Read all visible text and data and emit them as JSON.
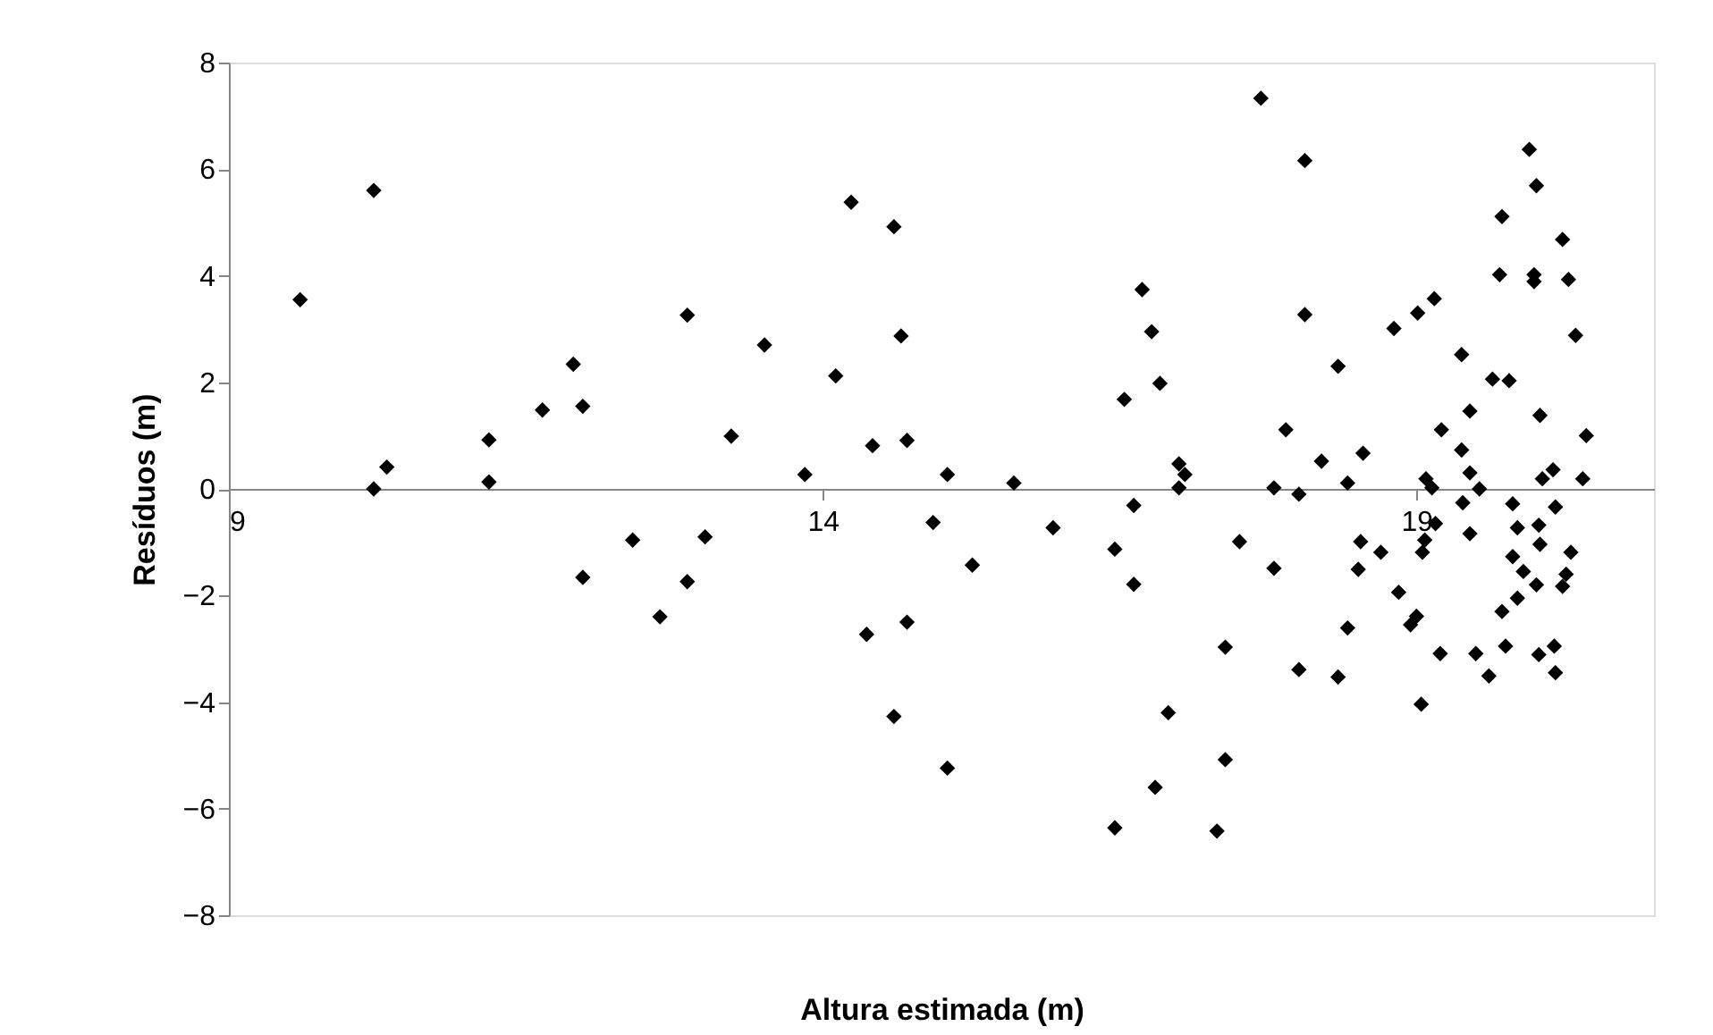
{
  "chart_data": {
    "type": "scatter",
    "xlabel": "Altura estimada (m)",
    "ylabel": "Resíduos (m)",
    "xlim": [
      9,
      21
    ],
    "xticks": [
      9,
      14,
      19
    ],
    "ylim": [
      -8,
      8
    ],
    "yticks": [
      -8,
      -6,
      -4,
      -2,
      0,
      2,
      4,
      6,
      8
    ],
    "marker": "diamond",
    "series": [
      {
        "color": "#000000",
        "x": [
          9.6,
          10.22,
          10.22,
          10.33,
          11.19,
          11.19,
          11.64,
          11.9,
          11.98,
          11.98,
          12.4,
          12.63,
          12.86,
          12.86,
          13.01,
          13.23,
          13.51,
          13.85,
          14.11,
          14.24,
          14.37,
          14.42,
          14.6,
          14.6,
          14.66,
          14.71,
          14.71,
          15.05,
          14.93,
          15.26,
          15.05,
          15.61,
          15.94,
          16.54,
          16.46,
          16.62,
          16.62,
          16.46,
          16.69,
          16.77,
          16.84,
          16.91,
          16.8,
          17.0,
          17.05,
          17.0,
          17.39,
          17.39,
          17.32,
          17.51,
          17.69,
          17.8,
          17.8,
          17.9,
          18.01,
          18.01,
          18.06,
          18.06,
          18.2,
          18.34,
          18.34,
          18.42,
          18.42,
          18.55,
          18.53,
          19.95,
          20.01,
          19.72,
          20.23,
          19.7,
          19.99,
          19.99,
          20.28,
          19.15,
          19.01,
          18.81,
          20.34,
          19.38,
          19.64,
          19.78,
          19.45,
          19.21,
          20.04,
          20.43,
          19.38,
          19.08,
          19.45,
          20.06,
          20.15,
          20.4,
          19.13,
          19.53,
          19.39,
          19.81,
          20.17,
          19.16,
          19.85,
          20.03,
          18.7,
          19.07,
          19.05,
          19.45,
          20.04,
          20.3,
          18.51,
          19.81,
          19.9,
          20.26,
          20.23,
          20.01,
          18.85,
          19.85,
          19.72,
          19.0,
          18.95,
          19.75,
          20.16,
          19.2,
          19.5,
          20.03,
          19.61,
          20.17,
          19.04
        ],
        "values": [
          3.55,
          5.6,
          0.0,
          0.41,
          0.92,
          0.13,
          1.48,
          2.34,
          1.55,
          -1.66,
          -0.96,
          -2.4,
          3.26,
          -1.74,
          -0.9,
          0.99,
          2.7,
          0.27,
          2.12,
          5.38,
          -2.73,
          0.81,
          4.92,
          -4.27,
          2.87,
          0.91,
          -2.5,
          0.27,
          -0.63,
          -1.43,
          -5.24,
          0.11,
          -0.73,
          1.68,
          -1.13,
          -0.31,
          -1.79,
          -6.36,
          3.74,
          2.95,
          1.98,
          -4.2,
          -5.6,
          0.47,
          0.27,
          0.02,
          -2.97,
          -5.08,
          -6.42,
          -0.99,
          7.33,
          0.02,
          -1.49,
          1.11,
          -0.1,
          -3.39,
          6.16,
          3.27,
          0.52,
          2.3,
          -3.53,
          0.11,
          -2.61,
          0.67,
          -0.99,
          6.37,
          5.69,
          5.11,
          4.68,
          4.02,
          4.02,
          3.89,
          3.93,
          3.57,
          3.3,
          3.01,
          2.88,
          2.52,
          2.06,
          2.03,
          1.46,
          1.11,
          1.38,
          1.0,
          0.73,
          0.19,
          0.3,
          0.19,
          0.36,
          0.19,
          0.02,
          0.0,
          -0.26,
          -0.28,
          -0.34,
          -0.65,
          -0.73,
          -0.68,
          -1.19,
          -0.96,
          -1.19,
          -0.84,
          -1.04,
          -1.19,
          -1.51,
          -1.27,
          -1.55,
          -1.6,
          -1.83,
          -1.8,
          -1.94,
          -2.05,
          -2.3,
          -2.39,
          -2.55,
          -2.95,
          -2.95,
          -3.09,
          -3.09,
          -3.11,
          -3.51,
          -3.45,
          -4.04
        ]
      }
    ]
  }
}
